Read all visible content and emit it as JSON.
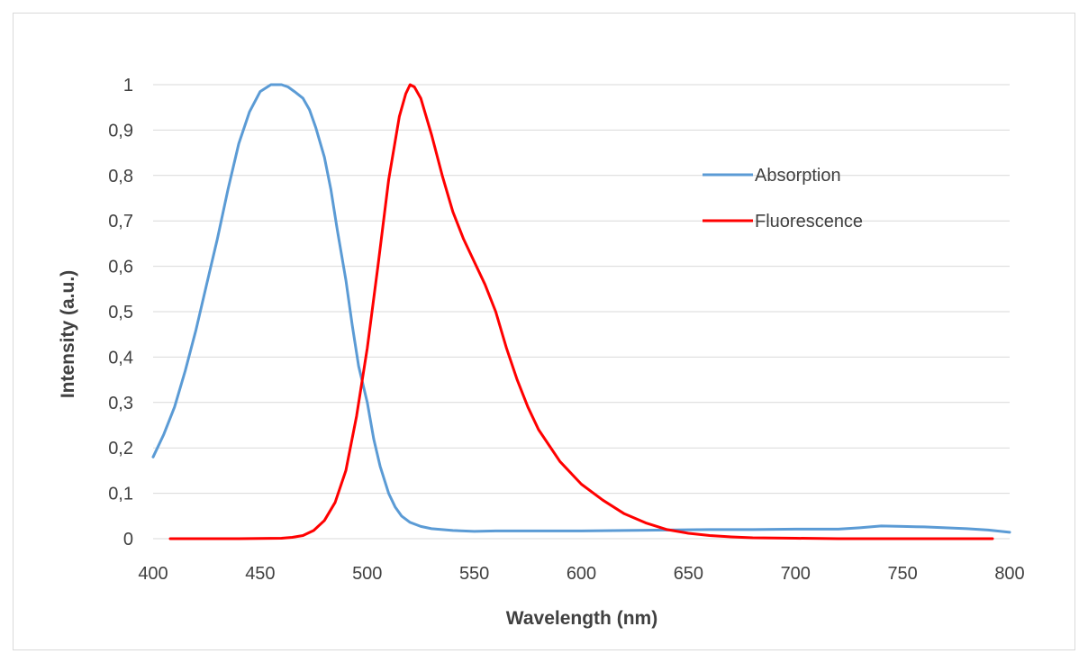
{
  "chart_data": {
    "type": "line",
    "title": "",
    "xlabel": "Wavelength (nm)",
    "ylabel": "Intensity (a.u.)",
    "xlim": [
      400,
      800
    ],
    "ylim": [
      0,
      1
    ],
    "x_ticks": [
      "400",
      "450",
      "500",
      "550",
      "600",
      "650",
      "700",
      "750",
      "800"
    ],
    "y_ticks": [
      "0",
      "0,1",
      "0,2",
      "0,3",
      "0,4",
      "0,5",
      "0,6",
      "0,7",
      "0,8",
      "0,9",
      "1"
    ],
    "grid": "horizontal",
    "legend_position": "top-right",
    "series": [
      {
        "name": "Absorption",
        "color": "#5b9bd5",
        "x": [
          400,
          405,
          410,
          415,
          420,
          425,
          430,
          435,
          440,
          445,
          450,
          455,
          458,
          460,
          463,
          466,
          470,
          473,
          476,
          480,
          483,
          486,
          490,
          493,
          496,
          500,
          503,
          506,
          510,
          513,
          516,
          520,
          525,
          530,
          540,
          550,
          560,
          570,
          580,
          600,
          620,
          640,
          660,
          680,
          700,
          720,
          730,
          740,
          750,
          760,
          770,
          780,
          790,
          800
        ],
        "y": [
          0.18,
          0.23,
          0.29,
          0.37,
          0.46,
          0.56,
          0.66,
          0.77,
          0.87,
          0.94,
          0.985,
          1.0,
          1.0,
          1.0,
          0.995,
          0.985,
          0.97,
          0.945,
          0.905,
          0.84,
          0.77,
          0.68,
          0.57,
          0.47,
          0.38,
          0.3,
          0.22,
          0.16,
          0.1,
          0.07,
          0.05,
          0.036,
          0.027,
          0.022,
          0.018,
          0.016,
          0.017,
          0.017,
          0.017,
          0.017,
          0.018,
          0.019,
          0.02,
          0.02,
          0.021,
          0.021,
          0.024,
          0.028,
          0.027,
          0.026,
          0.024,
          0.022,
          0.019,
          0.014
        ]
      },
      {
        "name": "Fluorescence",
        "color": "#ff0000",
        "x": [
          408,
          420,
          440,
          460,
          465,
          470,
          475,
          480,
          485,
          490,
          495,
          500,
          505,
          510,
          515,
          518,
          520,
          522,
          525,
          530,
          535,
          540,
          545,
          550,
          555,
          560,
          565,
          570,
          575,
          580,
          590,
          600,
          610,
          620,
          630,
          640,
          650,
          660,
          670,
          680,
          700,
          720,
          740,
          760,
          780,
          792
        ],
        "y": [
          0.0,
          0.0,
          0.0,
          0.001,
          0.003,
          0.007,
          0.018,
          0.04,
          0.08,
          0.15,
          0.27,
          0.42,
          0.6,
          0.79,
          0.93,
          0.98,
          1.0,
          0.995,
          0.97,
          0.89,
          0.8,
          0.72,
          0.66,
          0.61,
          0.56,
          0.5,
          0.42,
          0.35,
          0.29,
          0.24,
          0.17,
          0.12,
          0.085,
          0.055,
          0.035,
          0.02,
          0.012,
          0.007,
          0.004,
          0.002,
          0.001,
          0.0,
          0.0,
          0.0,
          0.0,
          0.0
        ]
      }
    ]
  }
}
